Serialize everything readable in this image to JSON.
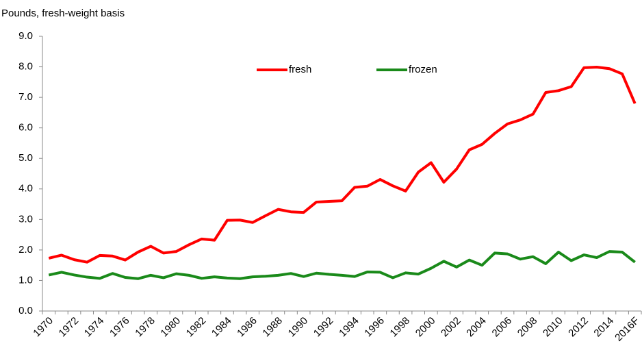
{
  "chart_data": {
    "type": "line",
    "ylabel": "Pounds, fresh-weight basis",
    "categories": [
      "1970",
      null,
      "1972",
      null,
      "1974",
      null,
      "1976",
      null,
      "1978",
      null,
      "1980",
      null,
      "1982",
      null,
      "1984",
      null,
      "1986",
      null,
      "1988",
      null,
      "1990",
      null,
      "1992",
      null,
      "1994",
      null,
      "1996",
      null,
      "1998",
      null,
      "2000",
      null,
      "2002",
      null,
      "2004",
      null,
      "2006",
      null,
      "2008",
      null,
      "2010",
      null,
      "2012",
      null,
      "2014",
      null,
      "2016F"
    ],
    "series": [
      {
        "name": "fresh",
        "color": "#ff0000",
        "values": [
          1.73,
          1.83,
          1.68,
          1.6,
          1.82,
          1.8,
          1.67,
          1.93,
          2.12,
          1.9,
          1.95,
          2.17,
          2.36,
          2.32,
          2.97,
          2.98,
          2.9,
          3.12,
          3.33,
          3.25,
          3.23,
          3.57,
          3.59,
          3.61,
          4.05,
          4.09,
          4.31,
          4.1,
          3.93,
          4.55,
          4.86,
          4.22,
          4.65,
          5.28,
          5.46,
          5.82,
          6.13,
          6.26,
          6.45,
          7.16,
          7.22,
          7.35,
          7.97,
          7.99,
          7.94,
          7.77,
          6.8
        ]
      },
      {
        "name": "frozen",
        "color": "#1a8a1a",
        "values": [
          1.18,
          1.27,
          1.18,
          1.11,
          1.07,
          1.23,
          1.1,
          1.06,
          1.17,
          1.09,
          1.22,
          1.17,
          1.07,
          1.12,
          1.08,
          1.06,
          1.12,
          1.14,
          1.17,
          1.23,
          1.13,
          1.24,
          1.2,
          1.17,
          1.13,
          1.28,
          1.27,
          1.09,
          1.25,
          1.21,
          1.4,
          1.63,
          1.44,
          1.67,
          1.5,
          1.9,
          1.87,
          1.7,
          1.78,
          1.55,
          1.93,
          1.65,
          1.84,
          1.75,
          1.95,
          1.93,
          1.6
        ]
      }
    ],
    "ylim": [
      0,
      9
    ],
    "yticks": [
      {
        "value": 0,
        "label": "0.0"
      },
      {
        "value": 1,
        "label": "1.0"
      },
      {
        "value": 2,
        "label": "2.0"
      },
      {
        "value": 3,
        "label": "3.0"
      },
      {
        "value": 4,
        "label": "4.0"
      },
      {
        "value": 5,
        "label": "5.0"
      },
      {
        "value": 6,
        "label": "6.0"
      },
      {
        "value": 7,
        "label": "7.0"
      },
      {
        "value": 8,
        "label": "8.0"
      },
      {
        "value": 9,
        "label": "9.0"
      }
    ],
    "grid": false,
    "legend": "top"
  }
}
